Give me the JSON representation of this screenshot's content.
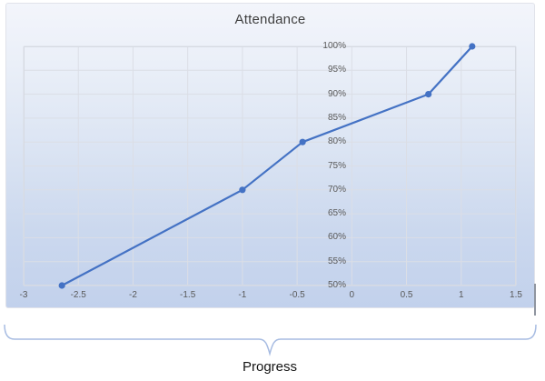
{
  "chart": {
    "title": "Attendance",
    "below_axis_label": "Progress",
    "y_tick_labels": [
      "100%",
      "95%",
      "90%",
      "85%",
      "80%",
      "75%",
      "70%",
      "65%",
      "60%",
      "55%",
      "50%"
    ],
    "x_tick_labels": [
      "-3",
      "-2.5",
      "-2",
      "-1.5",
      "-1",
      "-0.5",
      "0",
      "0.5",
      "1",
      "1.5"
    ]
  },
  "chart_data": {
    "type": "line",
    "title": "Attendance",
    "xlabel": "Progress",
    "ylabel": "",
    "series": [
      {
        "name": "Attendance",
        "points": [
          [
            -2.65,
            50
          ],
          [
            -1,
            70
          ],
          [
            -0.45,
            80
          ],
          [
            0.7,
            90
          ],
          [
            1.1,
            100
          ]
        ]
      }
    ],
    "xlim": [
      -3,
      1.5
    ],
    "ylim": [
      50,
      100
    ],
    "x_ticks": [
      -3,
      -2.5,
      -2,
      -1.5,
      -1,
      -0.5,
      0,
      0.5,
      1,
      1.5
    ],
    "y_ticks": [
      50,
      55,
      60,
      65,
      70,
      75,
      80,
      85,
      90,
      95,
      100
    ],
    "y_tick_format": "percent",
    "grid": true,
    "legend_position": "none",
    "marker": "circle"
  },
  "colors": {
    "line": "#4472C4",
    "marker": "#4472C4",
    "gridline": "#dbdee6",
    "plot_border": "#d6dae2",
    "tick_label": "#595959",
    "title_text": "#3f3f3f",
    "brace": "#a7bce2",
    "axis_title_text": "#141414",
    "edge_artifact": "#8f959f"
  }
}
